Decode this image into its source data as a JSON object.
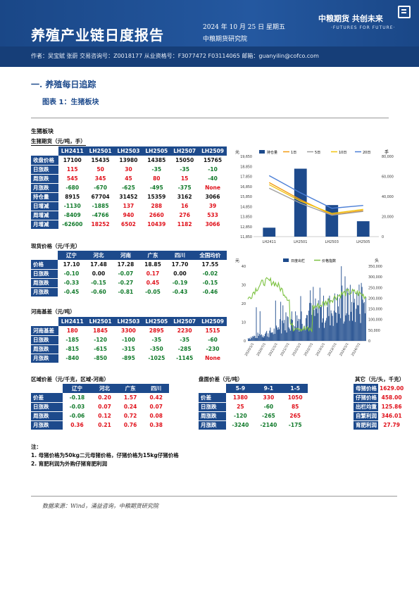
{
  "header": {
    "title": "养殖产业链日度报告",
    "date": "2024 年 10 月 25 日 星期五",
    "dept": "中粮期货研究院",
    "logo_cn": "中粮期货  共创未来",
    "logo_en": "·FUTURES FOR FUTURE·",
    "authors": "作者：吴宝赋   张蔚   交易咨询号：Z0018177 从业资格号：F3077472 F03114065  邮箱：guanyilin@cofco.com"
  },
  "section": {
    "title": "一.     养殖每日追踪",
    "figure": "图表 1：生猪板块"
  },
  "block_title": "生猪板块",
  "futures": {
    "label": "生猪期货（元/吨，手）",
    "columns": [
      "",
      "LH2411",
      "LH2501",
      "LH2503",
      "LH2505",
      "LH2507",
      "LH2509"
    ],
    "rows": [
      {
        "name": "收盘价格",
        "cells": [
          "17100",
          "15435",
          "13980",
          "14385",
          "15050",
          "15765"
        ],
        "cls": [
          "blk",
          "blk",
          "blk",
          "blk",
          "blk",
          "blk"
        ]
      },
      {
        "name": "日涨跌",
        "cells": [
          "115",
          "50",
          "30",
          "-35",
          "-35",
          "-10"
        ],
        "cls": [
          "red",
          "red",
          "red",
          "grn",
          "grn",
          "grn"
        ]
      },
      {
        "name": "周涨跌",
        "cells": [
          "545",
          "345",
          "45",
          "80",
          "15",
          "-40"
        ],
        "cls": [
          "red",
          "red",
          "red",
          "red",
          "red",
          "grn"
        ]
      },
      {
        "name": "月涨跌",
        "cells": [
          "-680",
          "-670",
          "-625",
          "-495",
          "-375",
          "None"
        ],
        "cls": [
          "grn",
          "grn",
          "grn",
          "grn",
          "grn",
          "red"
        ]
      },
      {
        "name": "持仓量",
        "cells": [
          "8915",
          "67704",
          "31452",
          "15359",
          "3162",
          "3066"
        ],
        "cls": [
          "blk",
          "blk",
          "blk",
          "blk",
          "blk",
          "blk"
        ]
      },
      {
        "name": "日增减",
        "cells": [
          "-1130",
          "-1885",
          "137",
          "288",
          "16",
          "39"
        ],
        "cls": [
          "grn",
          "grn",
          "red",
          "red",
          "red",
          "red"
        ]
      },
      {
        "name": "周增减",
        "cells": [
          "-8409",
          "-4766",
          "940",
          "2660",
          "276",
          "533"
        ],
        "cls": [
          "grn",
          "grn",
          "red",
          "red",
          "red",
          "red"
        ]
      },
      {
        "name": "月增减",
        "cells": [
          "-62600",
          "18252",
          "6502",
          "10439",
          "1182",
          "3066"
        ],
        "cls": [
          "grn",
          "red",
          "red",
          "red",
          "red",
          "red"
        ]
      }
    ]
  },
  "spot": {
    "label": "现货价格（元/千克）",
    "columns": [
      "",
      "辽宁",
      "河北",
      "河南",
      "广东",
      "四川",
      "全国均价"
    ],
    "rows": [
      {
        "name": "价格",
        "cells": [
          "17.10",
          "17.48",
          "17.28",
          "18.85",
          "17.70",
          "17.55"
        ],
        "cls": [
          "blk",
          "blk",
          "blk",
          "blk",
          "blk",
          "blk"
        ]
      },
      {
        "name": "日涨跌",
        "cells": [
          "-0.10",
          "0.00",
          "-0.07",
          "0.17",
          "0.00",
          "-0.02"
        ],
        "cls": [
          "grn",
          "blk",
          "grn",
          "red",
          "blk",
          "grn"
        ]
      },
      {
        "name": "周涨跌",
        "cells": [
          "-0.33",
          "-0.15",
          "-0.27",
          "0.45",
          "-0.19",
          "-0.15"
        ],
        "cls": [
          "grn",
          "grn",
          "grn",
          "red",
          "grn",
          "grn"
        ]
      },
      {
        "name": "月涨跌",
        "cells": [
          "-0.45",
          "-0.60",
          "-0.81",
          "-0.05",
          "-0.43",
          "-0.46"
        ],
        "cls": [
          "grn",
          "grn",
          "grn",
          "grn",
          "grn",
          "grn"
        ]
      }
    ]
  },
  "basis": {
    "label": "河南基差（元/吨）",
    "columns": [
      "",
      "LH2411",
      "LH2501",
      "LH2503",
      "LH2505",
      "LH2507",
      "LH2509"
    ],
    "rows": [
      {
        "name": "河南基差",
        "cells": [
          "180",
          "1845",
          "3300",
          "2895",
          "2230",
          "1515"
        ],
        "cls": [
          "red",
          "red",
          "red",
          "red",
          "red",
          "red"
        ]
      },
      {
        "name": "日涨跌",
        "cells": [
          "-185",
          "-120",
          "-100",
          "-35",
          "-35",
          "-60"
        ],
        "cls": [
          "grn",
          "grn",
          "grn",
          "grn",
          "grn",
          "grn"
        ]
      },
      {
        "name": "周涨跌",
        "cells": [
          "-815",
          "-615",
          "-315",
          "-350",
          "-285",
          "-230"
        ],
        "cls": [
          "grn",
          "grn",
          "grn",
          "grn",
          "grn",
          "grn"
        ]
      },
      {
        "name": "月涨跌",
        "cells": [
          "-840",
          "-850",
          "-895",
          "-1025",
          "-1145",
          "None"
        ],
        "cls": [
          "grn",
          "grn",
          "grn",
          "grn",
          "grn",
          "red"
        ]
      }
    ]
  },
  "regional": {
    "label": "区域价差（元/千克，区域-河南）",
    "columns": [
      "",
      "辽宁",
      "河北",
      "广东",
      "四川"
    ],
    "rows": [
      {
        "name": "价差",
        "cells": [
          "-0.18",
          "0.20",
          "1.57",
          "0.42"
        ],
        "cls": [
          "grn",
          "red",
          "red",
          "red"
        ]
      },
      {
        "name": "日涨跌",
        "cells": [
          "-0.03",
          "0.07",
          "0.24",
          "0.07"
        ],
        "cls": [
          "grn",
          "red",
          "red",
          "red"
        ]
      },
      {
        "name": "周涨跌",
        "cells": [
          "-0.06",
          "0.12",
          "0.72",
          "0.08"
        ],
        "cls": [
          "grn",
          "red",
          "red",
          "red"
        ]
      },
      {
        "name": "月涨跌",
        "cells": [
          "0.36",
          "0.21",
          "0.76",
          "0.38"
        ],
        "cls": [
          "red",
          "red",
          "red",
          "red"
        ]
      }
    ]
  },
  "spread": {
    "label": "盘面价差（元/吨）",
    "columns": [
      "",
      "5-9",
      "9-1",
      "1-5"
    ],
    "rows": [
      {
        "name": "价差",
        "cells": [
          "1380",
          "330",
          "1050"
        ],
        "cls": [
          "red",
          "red",
          "red"
        ]
      },
      {
        "name": "日涨跌",
        "cells": [
          "25",
          "-60",
          "85"
        ],
        "cls": [
          "red",
          "grn",
          "red"
        ]
      },
      {
        "name": "周涨跌",
        "cells": [
          "-120",
          "-265",
          "265"
        ],
        "cls": [
          "grn",
          "grn",
          "red"
        ]
      },
      {
        "name": "月涨跌",
        "cells": [
          "-3240",
          "-2140",
          "-175"
        ],
        "cls": [
          "grn",
          "grn",
          "grn"
        ]
      }
    ]
  },
  "other": {
    "label": "其它（元/头，千克）",
    "rows": [
      {
        "name": "母猪价格",
        "value": "1629.00"
      },
      {
        "name": "仔猪价格",
        "value": "458.00"
      },
      {
        "name": "出栏均重",
        "value": "125.86"
      },
      {
        "name": "自繁利润",
        "value": "346.01"
      },
      {
        "name": "育肥利润",
        "value": "27.79"
      }
    ]
  },
  "notes": {
    "title": "注：",
    "items": [
      "1. 母猪价格为50kg二元母猪价格，仔猪价格为15kg仔猪价格",
      "2. 育肥利润为外购仔猪育肥利润"
    ]
  },
  "source": "数据来源：Wind，涌益咨询，中粮期货研究院",
  "chart_data": [
    {
      "type": "bar",
      "categories": [
        "LH2411",
        "LH2501",
        "LH2503",
        "LH2505"
      ],
      "series": [
        {
          "name": "持仓量",
          "type": "bar",
          "axis": "right",
          "values": [
            8915,
            67704,
            31452,
            15359
          ]
        },
        {
          "name": "1日",
          "type": "line",
          "axis": "left",
          "values": [
            17100,
            15435,
            13980,
            14385
          ]
        },
        {
          "name": "5日",
          "type": "line",
          "axis": "left",
          "values": [
            16555,
            15090,
            13935,
            14305
          ]
        },
        {
          "name": "10日",
          "type": "line",
          "axis": "left",
          "values": [
            16900,
            15300,
            14100,
            14500
          ]
        },
        {
          "name": "20日",
          "type": "line",
          "axis": "left",
          "values": [
            17780,
            16105,
            14605,
            14880
          ]
        }
      ],
      "ylabel_left": "元",
      "ylabel_right": "手",
      "ylim_left": [
        11850,
        19650
      ],
      "ylim_right": [
        0,
        80000
      ],
      "yticks_left": [
        "11,850",
        "12,850",
        "13,850",
        "14,850",
        "15,850",
        "16,850",
        "17,850",
        "18,850",
        "19,650"
      ],
      "yticks_right": [
        "0",
        "20,000",
        "40,000",
        "60,000",
        "80,000"
      ],
      "colors": {
        "持仓量": "#1d4a8c",
        "1日": "#f39c12",
        "5日": "#a0a0a0",
        "10日": "#f1c40f",
        "20日": "#4a7ed6"
      },
      "legend": "top"
    },
    {
      "type": "line",
      "x": [
        "2020/1/1",
        "2020/7/1",
        "2021/1/1",
        "2021/7/1",
        "2022/1/1",
        "2022/7/1",
        "2023/1/1",
        "2023/7/1",
        "2024/1/1",
        "2024/7/1"
      ],
      "series": [
        {
          "name": "日度出栏",
          "type": "bar",
          "axis": "right"
        },
        {
          "name": "价格指数",
          "type": "line",
          "axis": "left"
        }
      ],
      "ylabel_left": "元",
      "ylabel_right": "头",
      "ylim_left": [
        0,
        40
      ],
      "ylim_right": [
        0,
        350000
      ],
      "yticks_left": [
        "0",
        "10",
        "20",
        "30",
        "40"
      ],
      "yticks_right": [
        "0",
        "50,000",
        "100,000",
        "150,000",
        "200,000",
        "250,000",
        "300,000",
        "350,000"
      ],
      "colors": {
        "日度出栏": "#1d4a8c",
        "价格指数": "#7dc242"
      },
      "legend": "top"
    }
  ]
}
